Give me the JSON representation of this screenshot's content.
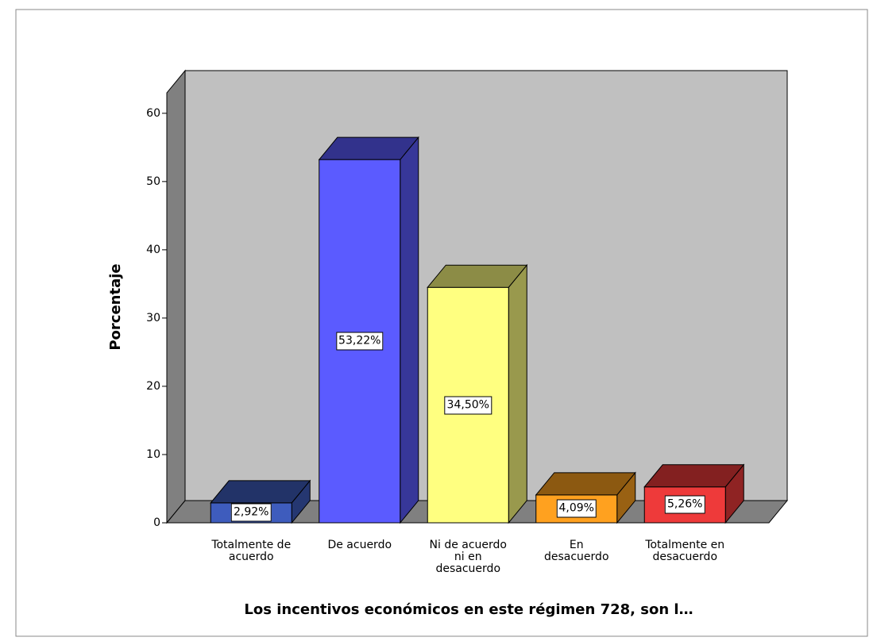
{
  "chart_data": {
    "type": "bar3d",
    "xlabel": "Los incentivos económicos en este régimen 728, son l…",
    "ylabel": "Porcentaje",
    "categories": [
      "Totalmente de acuerdo",
      "De acuerdo",
      "Ni de acuerdo ni en desacuerdo",
      "En desacuerdo",
      "Totalmente en desacuerdo"
    ],
    "values": [
      2.92,
      53.22,
      34.5,
      4.09,
      5.26
    ],
    "value_labels": [
      "2,92%",
      "53,22%",
      "34,50%",
      "4,09%",
      "5,26%"
    ],
    "colors": [
      "#3e5cbd",
      "#5b5bff",
      "#ffff80",
      "#ffa11f",
      "#ee3a3a"
    ],
    "ylim": [
      0,
      63
    ],
    "yticks": [
      0,
      10,
      20,
      30,
      40,
      50,
      60
    ],
    "grid": false
  }
}
